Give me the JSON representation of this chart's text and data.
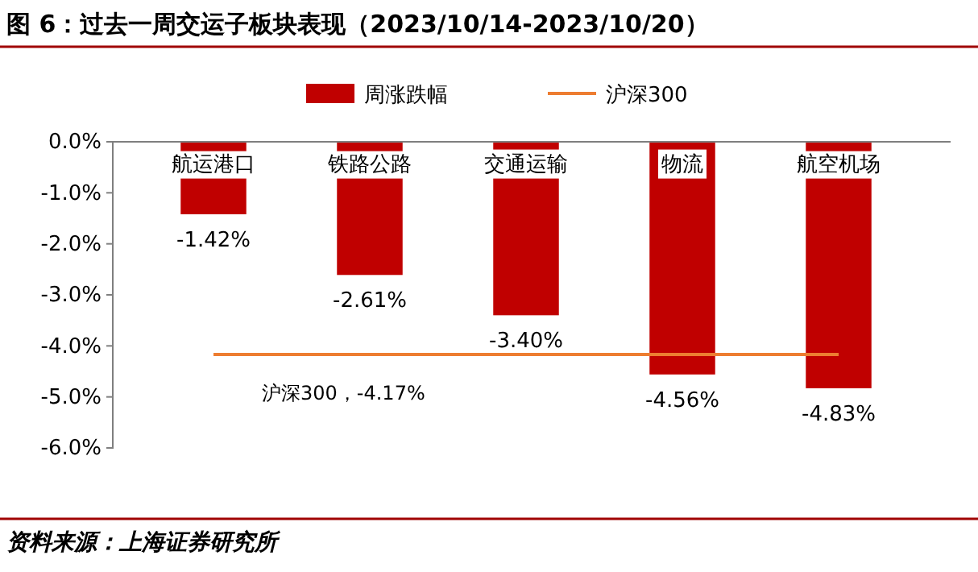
{
  "chart_data": {
    "type": "bar",
    "title": "图 6：过去一周交运子板块表现（2023/10/14-2023/10/20）",
    "categories": [
      "航运港口",
      "铁路公路",
      "交通运输",
      "物流",
      "航空机场"
    ],
    "series": [
      {
        "name": "周涨跌幅",
        "color": "#c00000",
        "values": [
          -1.42,
          -2.61,
          -3.4,
          -4.56,
          -4.83
        ],
        "value_labels": [
          "-1.42%",
          "-2.61%",
          "-3.40%",
          "-4.56%",
          "-4.83%"
        ]
      },
      {
        "name": "沪深300",
        "type": "line",
        "color": "#ed7d31",
        "values": [
          -4.17,
          -4.17,
          -4.17,
          -4.17,
          -4.17
        ]
      }
    ],
    "ylim": [
      -6,
      0
    ],
    "yticks": [
      {
        "value": 0,
        "label": "0.0%"
      },
      {
        "value": -1,
        "label": "-1.0%"
      },
      {
        "value": -2,
        "label": "-2.0%"
      },
      {
        "value": -3,
        "label": "-3.0%"
      },
      {
        "value": -4,
        "label": "-4.0%"
      },
      {
        "value": -5,
        "label": "-5.0%"
      },
      {
        "value": -6,
        "label": "-6.0%"
      }
    ],
    "legend": "top",
    "annotations": [
      {
        "text": "沪深300，-4.17%",
        "x": "航运港口",
        "y": -4.17
      },
      "资料来源：上海证券研究所"
    ]
  }
}
